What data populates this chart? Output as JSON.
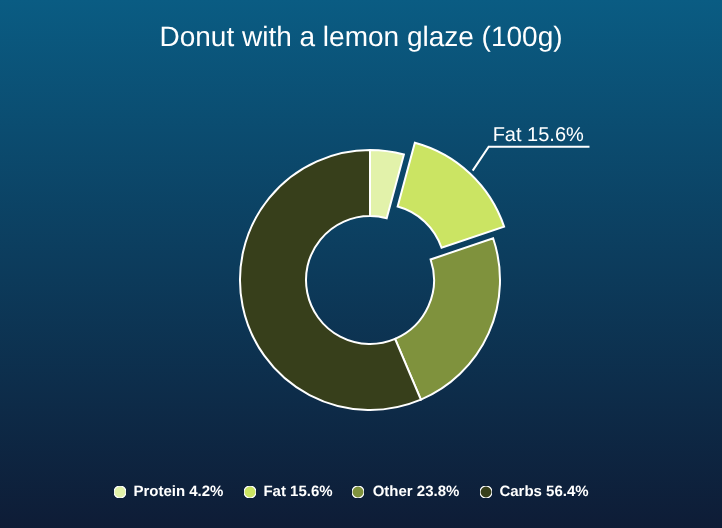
{
  "chart_data": {
    "type": "donut",
    "title": "Donut with a lemon glaze (100g)",
    "categories": [
      "Protein 4.2%",
      "Fat 15.6%",
      "Other 23.8%",
      "Carbs 56.4%"
    ],
    "values": [
      4.2,
      15.6,
      23.8,
      56.4
    ],
    "colors": [
      "#e2f2aa",
      "#cbe463",
      "#7f923d",
      "#373f1b"
    ],
    "value_labels": [
      null,
      "Fat 15.6%",
      null,
      null
    ],
    "legend": "bottom"
  }
}
